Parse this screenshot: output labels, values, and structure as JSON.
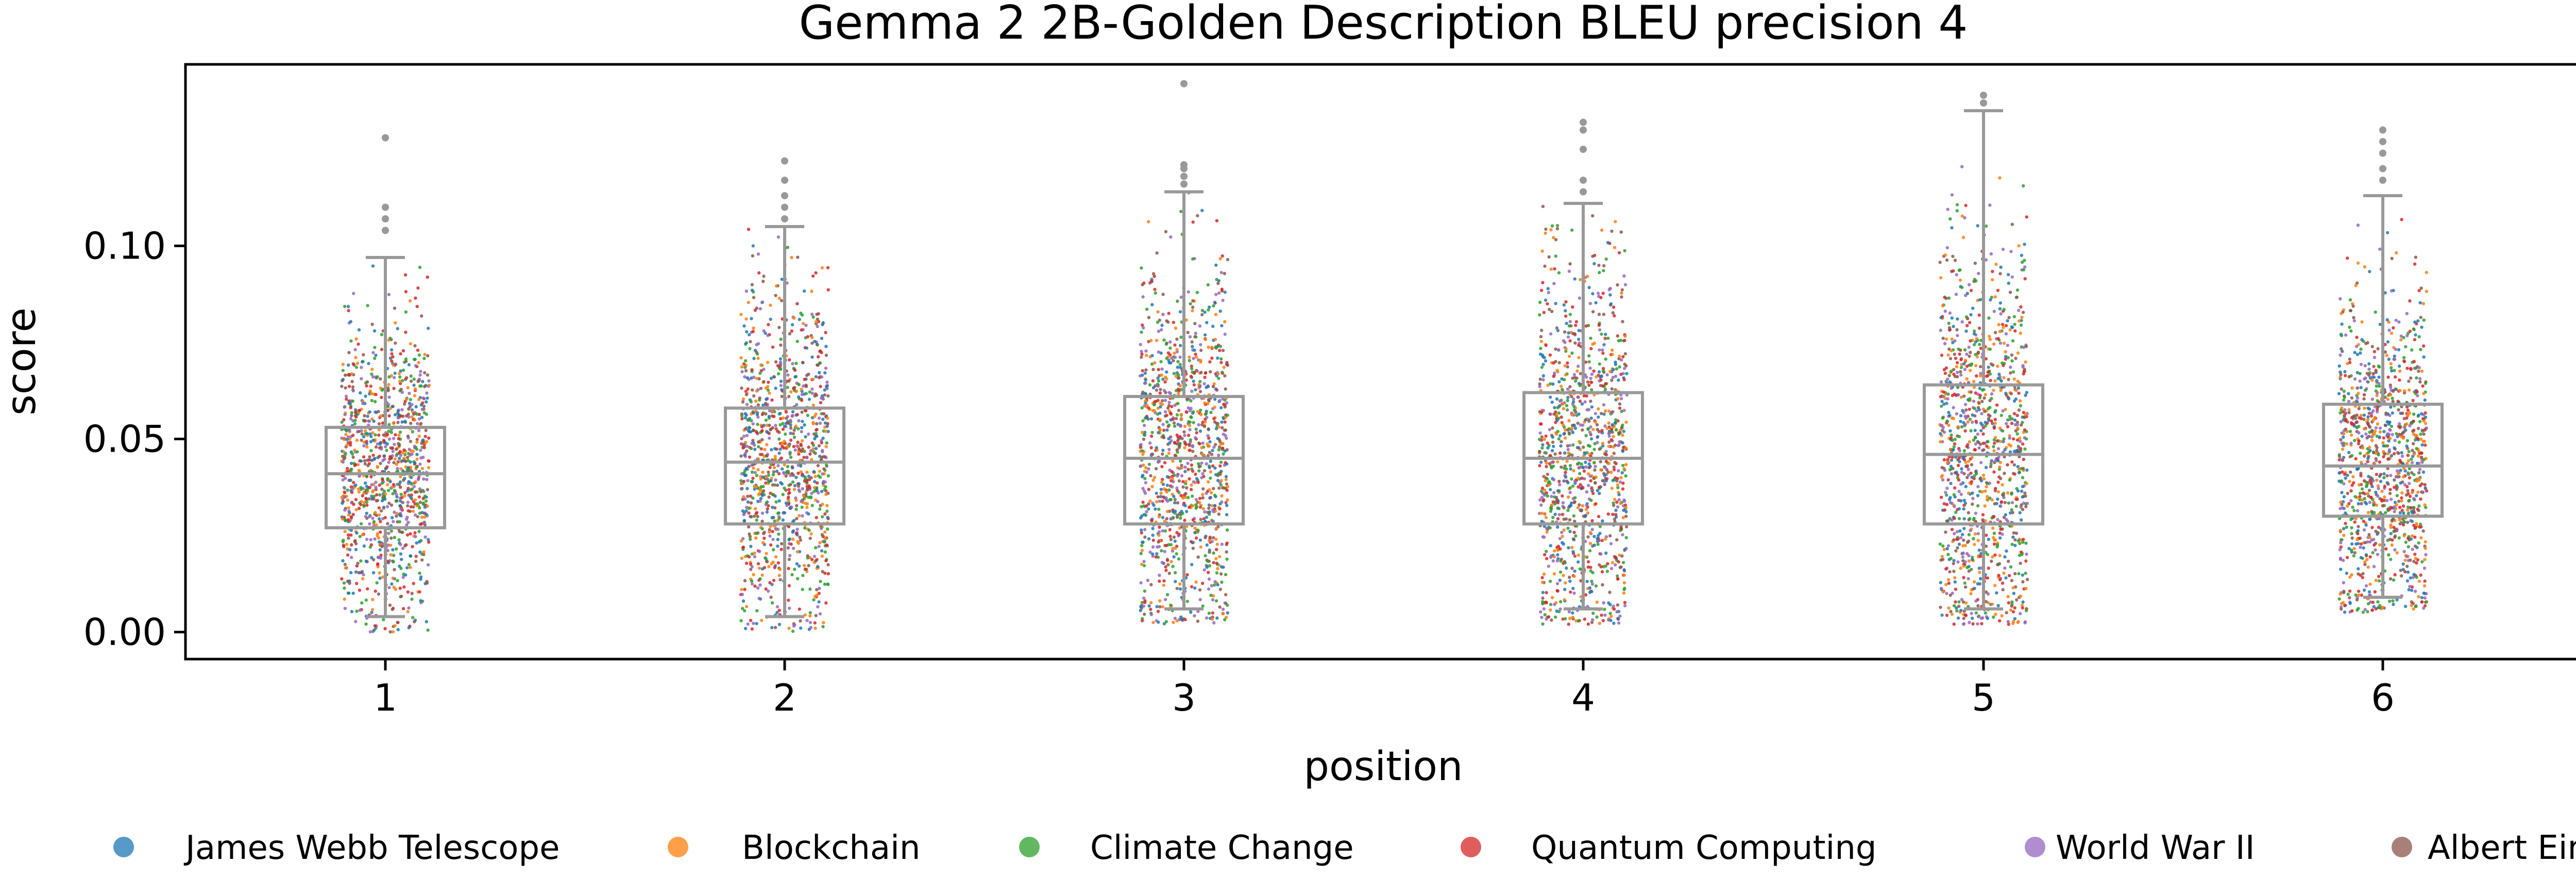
{
  "chart_data": {
    "type": "box",
    "title": "Gemma 2 2B-Golden Description BLEU precision 4",
    "xlabel": "position",
    "ylabel": "score",
    "ylim": [
      -0.007,
      0.147
    ],
    "yticks": [
      "0.00",
      "0.05",
      "0.10"
    ],
    "ytick_values": [
      0.0,
      0.05,
      0.1
    ],
    "categories": [
      "1",
      "2",
      "3",
      "4",
      "5",
      "6"
    ],
    "boxes": [
      {
        "position": "1",
        "whisker_low": 0.004,
        "q1": 0.027,
        "median": 0.041,
        "q3": 0.053,
        "whisker_high": 0.097,
        "outliers": [
          0.104,
          0.107,
          0.11,
          0.128
        ]
      },
      {
        "position": "2",
        "whisker_low": 0.004,
        "q1": 0.028,
        "median": 0.044,
        "q3": 0.058,
        "whisker_high": 0.105,
        "outliers": [
          0.107,
          0.11,
          0.113,
          0.117,
          0.122
        ]
      },
      {
        "position": "3",
        "whisker_low": 0.006,
        "q1": 0.028,
        "median": 0.045,
        "q3": 0.061,
        "whisker_high": 0.114,
        "outliers": [
          0.116,
          0.118,
          0.12,
          0.121,
          0.142
        ]
      },
      {
        "position": "4",
        "whisker_low": 0.006,
        "q1": 0.028,
        "median": 0.045,
        "q3": 0.062,
        "whisker_high": 0.111,
        "outliers": [
          0.114,
          0.117,
          0.125,
          0.13,
          0.132
        ]
      },
      {
        "position": "5",
        "whisker_low": 0.006,
        "q1": 0.028,
        "median": 0.046,
        "q3": 0.064,
        "whisker_high": 0.135,
        "outliers": [
          0.137,
          0.139
        ]
      },
      {
        "position": "6",
        "whisker_low": 0.009,
        "q1": 0.03,
        "median": 0.043,
        "q3": 0.059,
        "whisker_high": 0.113,
        "outliers": [
          0.117,
          0.12,
          0.124,
          0.127,
          0.13
        ]
      }
    ],
    "series": [
      {
        "name": "James Webb Telescope",
        "color": "#1f77b4"
      },
      {
        "name": "Blockchain",
        "color": "#ff7f0e"
      },
      {
        "name": "Climate Change",
        "color": "#2ca02c"
      },
      {
        "name": "Quantum Computing",
        "color": "#d62728"
      },
      {
        "name": "World War II",
        "color": "#9467bd"
      },
      {
        "name": "Albert Einstein",
        "color": "#8c564b"
      }
    ],
    "legend_position": "bottom",
    "grid": false,
    "box_color": "#999999"
  }
}
